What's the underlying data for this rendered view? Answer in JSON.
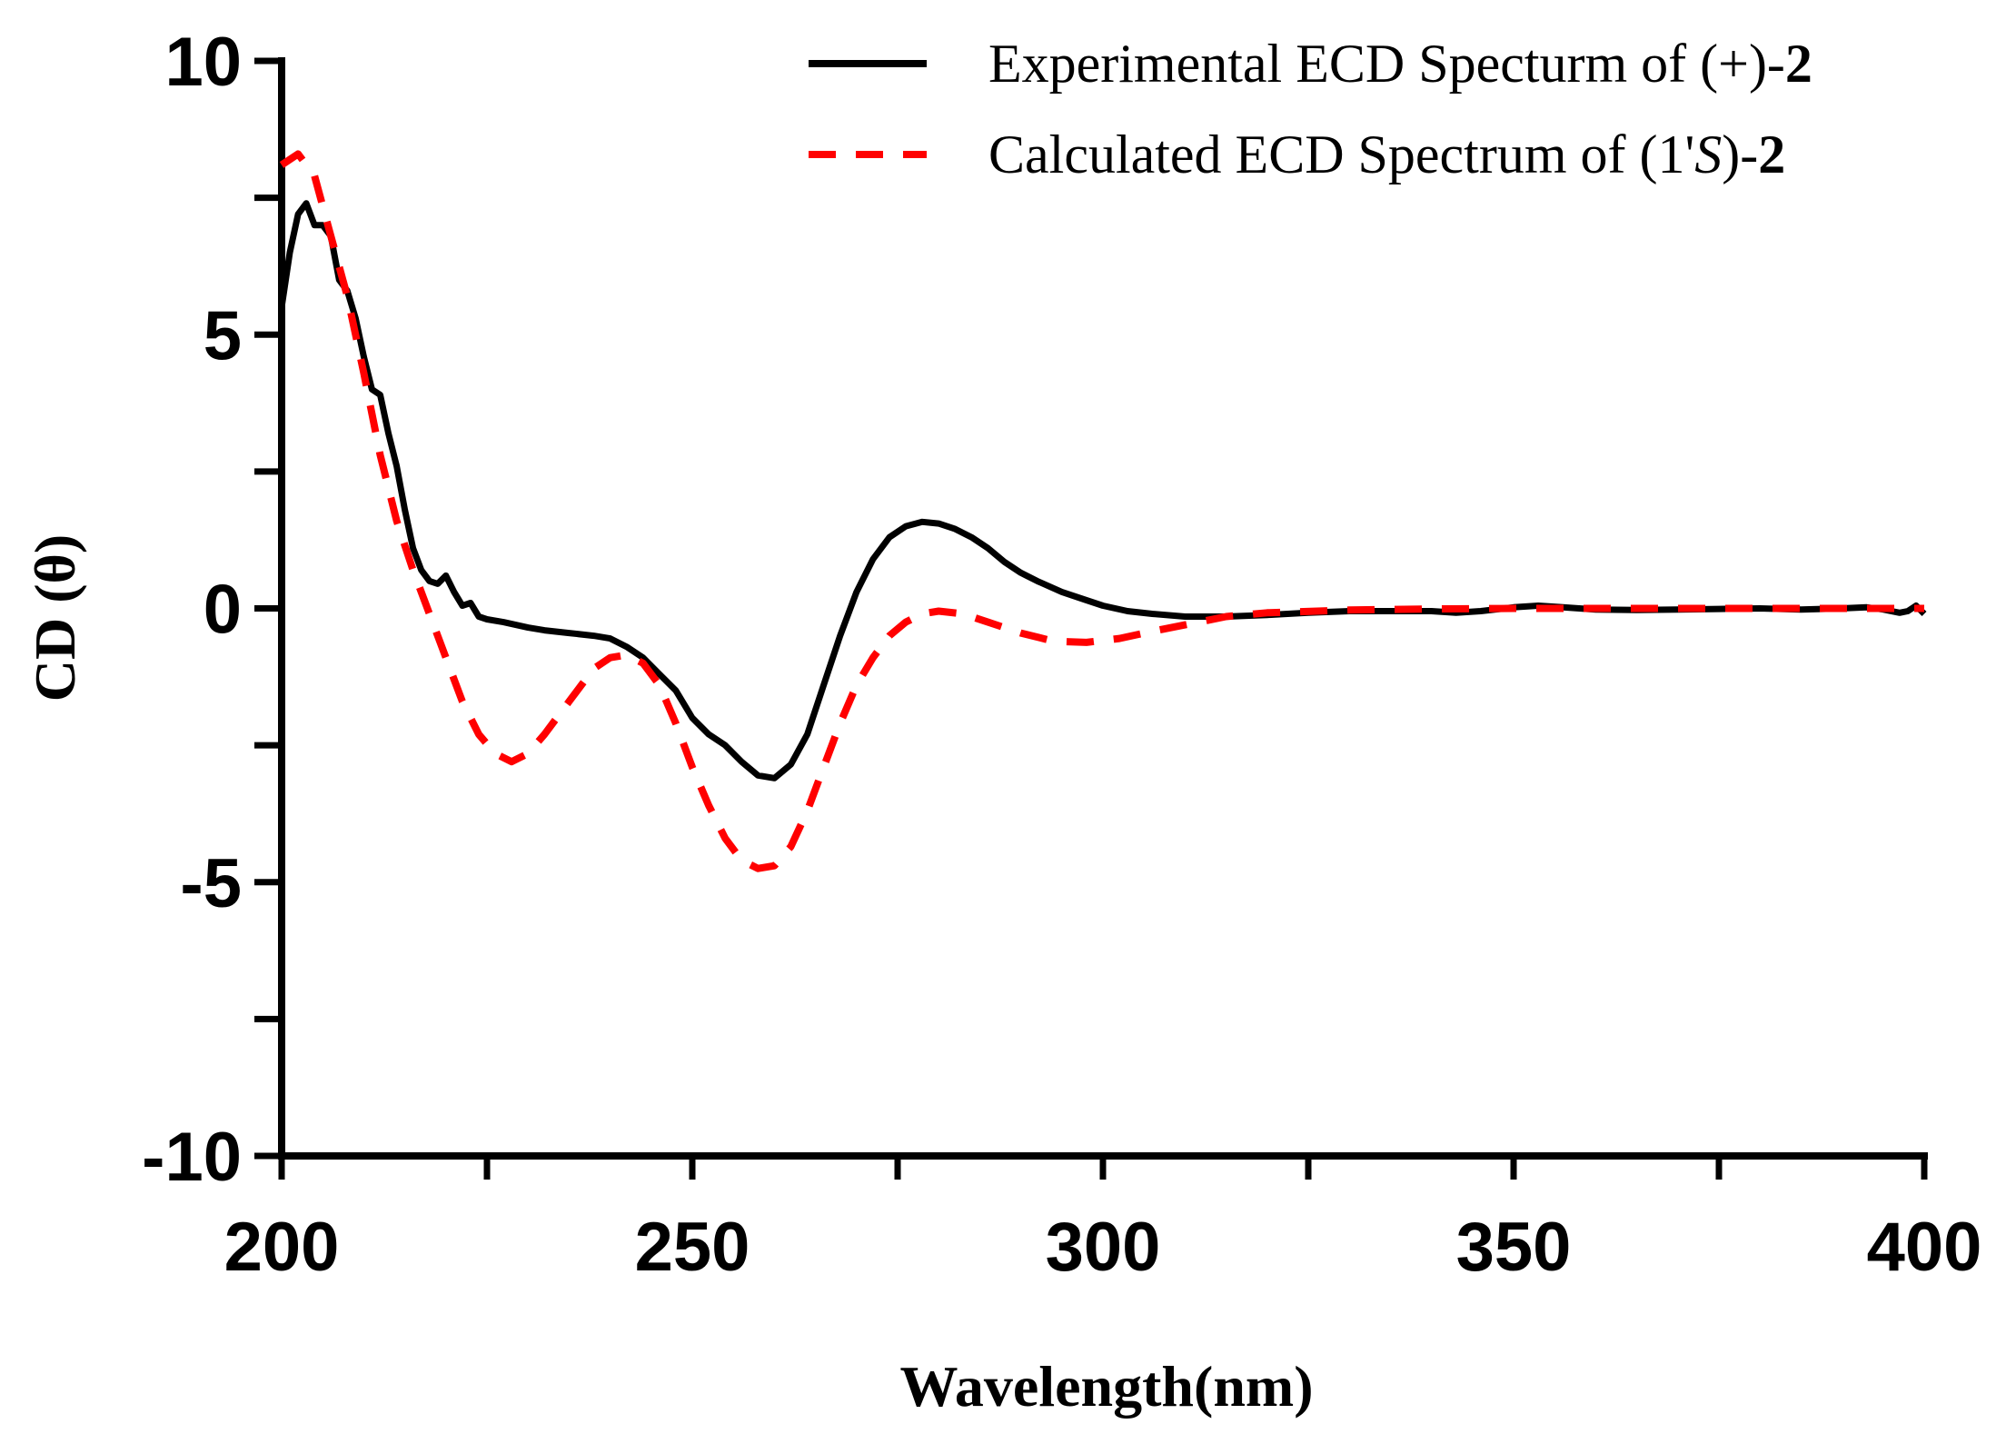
{
  "chart_data": {
    "type": "line",
    "xlabel": "Wavelength(nm)",
    "ylabel": "CD (θ)",
    "xlim": [
      200,
      400
    ],
    "ylim": [
      -10,
      10
    ],
    "x_ticks": [
      "200",
      "250",
      "300",
      "350",
      "400"
    ],
    "y_ticks": [
      "10",
      "5",
      "0",
      "-5",
      "-10"
    ],
    "x_minor_tick_values": [
      225,
      275,
      325,
      375
    ],
    "y_minor_tick_values": [
      7.5,
      2.5,
      -2.5,
      -7.5
    ],
    "grid": false,
    "legend_position": "top-right",
    "legend": [
      {
        "prefix": "Experimental ECD Specturm of (+)-",
        "italic": "",
        "suffix": "",
        "bold": "2"
      },
      {
        "prefix": "Calculated ECD Spectrum of (1'",
        "italic": "S",
        "suffix": ")-",
        "bold": "2"
      }
    ],
    "colors": {
      "experimental": "#000000",
      "calculated": "#ff0000",
      "axis": "#000000"
    },
    "series": [
      {
        "key": "experimental",
        "style": "solid",
        "x": [
          200,
          201,
          202,
          203,
          204,
          205,
          206,
          207,
          208,
          209,
          210,
          211,
          212,
          213,
          214,
          215,
          216,
          217,
          218,
          219,
          220,
          221,
          222,
          223,
          224,
          225,
          227,
          230,
          232,
          235,
          238,
          240,
          242,
          244,
          246,
          248,
          250,
          252,
          254,
          256,
          258,
          260,
          262,
          264,
          266,
          268,
          270,
          272,
          274,
          276,
          278,
          280,
          282,
          284,
          286,
          288,
          290,
          292,
          295,
          298,
          300,
          303,
          306,
          310,
          315,
          320,
          325,
          330,
          335,
          340,
          343,
          346,
          350,
          353,
          356,
          360,
          365,
          370,
          375,
          380,
          385,
          390,
          393,
          395,
          397,
          398,
          399,
          400
        ],
        "y": [
          5.5,
          6.5,
          7.2,
          7.4,
          7.0,
          7.0,
          6.8,
          6.0,
          5.8,
          5.3,
          4.6,
          4.0,
          3.9,
          3.2,
          2.6,
          1.8,
          1.1,
          0.7,
          0.5,
          0.45,
          0.6,
          0.3,
          0.05,
          0.1,
          -0.15,
          -0.2,
          -0.25,
          -0.35,
          -0.4,
          -0.45,
          -0.5,
          -0.55,
          -0.7,
          -0.9,
          -1.2,
          -1.5,
          -2.0,
          -2.3,
          -2.5,
          -2.8,
          -3.05,
          -3.1,
          -2.85,
          -2.3,
          -1.4,
          -0.5,
          0.3,
          0.9,
          1.3,
          1.5,
          1.58,
          1.55,
          1.45,
          1.3,
          1.1,
          0.85,
          0.65,
          0.5,
          0.3,
          0.15,
          0.05,
          -0.05,
          -0.1,
          -0.15,
          -0.15,
          -0.12,
          -0.08,
          -0.05,
          -0.05,
          -0.05,
          -0.08,
          -0.05,
          0.02,
          0.05,
          0.02,
          -0.02,
          -0.03,
          -0.02,
          -0.01,
          0.0,
          -0.02,
          0.0,
          0.02,
          -0.02,
          -0.08,
          -0.05,
          0.05,
          -0.1
        ]
      },
      {
        "key": "calculated",
        "style": "dashed",
        "x": [
          200,
          202,
          204,
          206,
          208,
          210,
          212,
          214,
          216,
          218,
          220,
          222,
          224,
          226,
          228,
          230,
          232,
          235,
          238,
          240,
          242,
          244,
          246,
          248,
          250,
          252,
          254,
          256,
          258,
          260,
          262,
          264,
          266,
          268,
          270,
          272,
          274,
          276,
          278,
          280,
          283,
          286,
          290,
          294,
          298,
          302,
          306,
          310,
          315,
          320,
          330,
          340,
          350,
          360,
          370,
          380,
          390,
          400
        ],
        "y": [
          8.1,
          8.3,
          7.9,
          6.8,
          5.7,
          4.3,
          2.8,
          1.6,
          0.7,
          -0.1,
          -0.9,
          -1.7,
          -2.3,
          -2.65,
          -2.8,
          -2.65,
          -2.3,
          -1.7,
          -1.1,
          -0.9,
          -0.85,
          -1.0,
          -1.4,
          -2.1,
          -2.9,
          -3.6,
          -4.2,
          -4.6,
          -4.75,
          -4.7,
          -4.35,
          -3.7,
          -2.9,
          -2.1,
          -1.4,
          -0.9,
          -0.5,
          -0.25,
          -0.1,
          -0.05,
          -0.1,
          -0.25,
          -0.45,
          -0.6,
          -0.62,
          -0.55,
          -0.42,
          -0.3,
          -0.15,
          -0.08,
          -0.03,
          -0.01,
          0.0,
          0.0,
          0.0,
          0.0,
          0.0,
          0.0
        ]
      }
    ]
  }
}
